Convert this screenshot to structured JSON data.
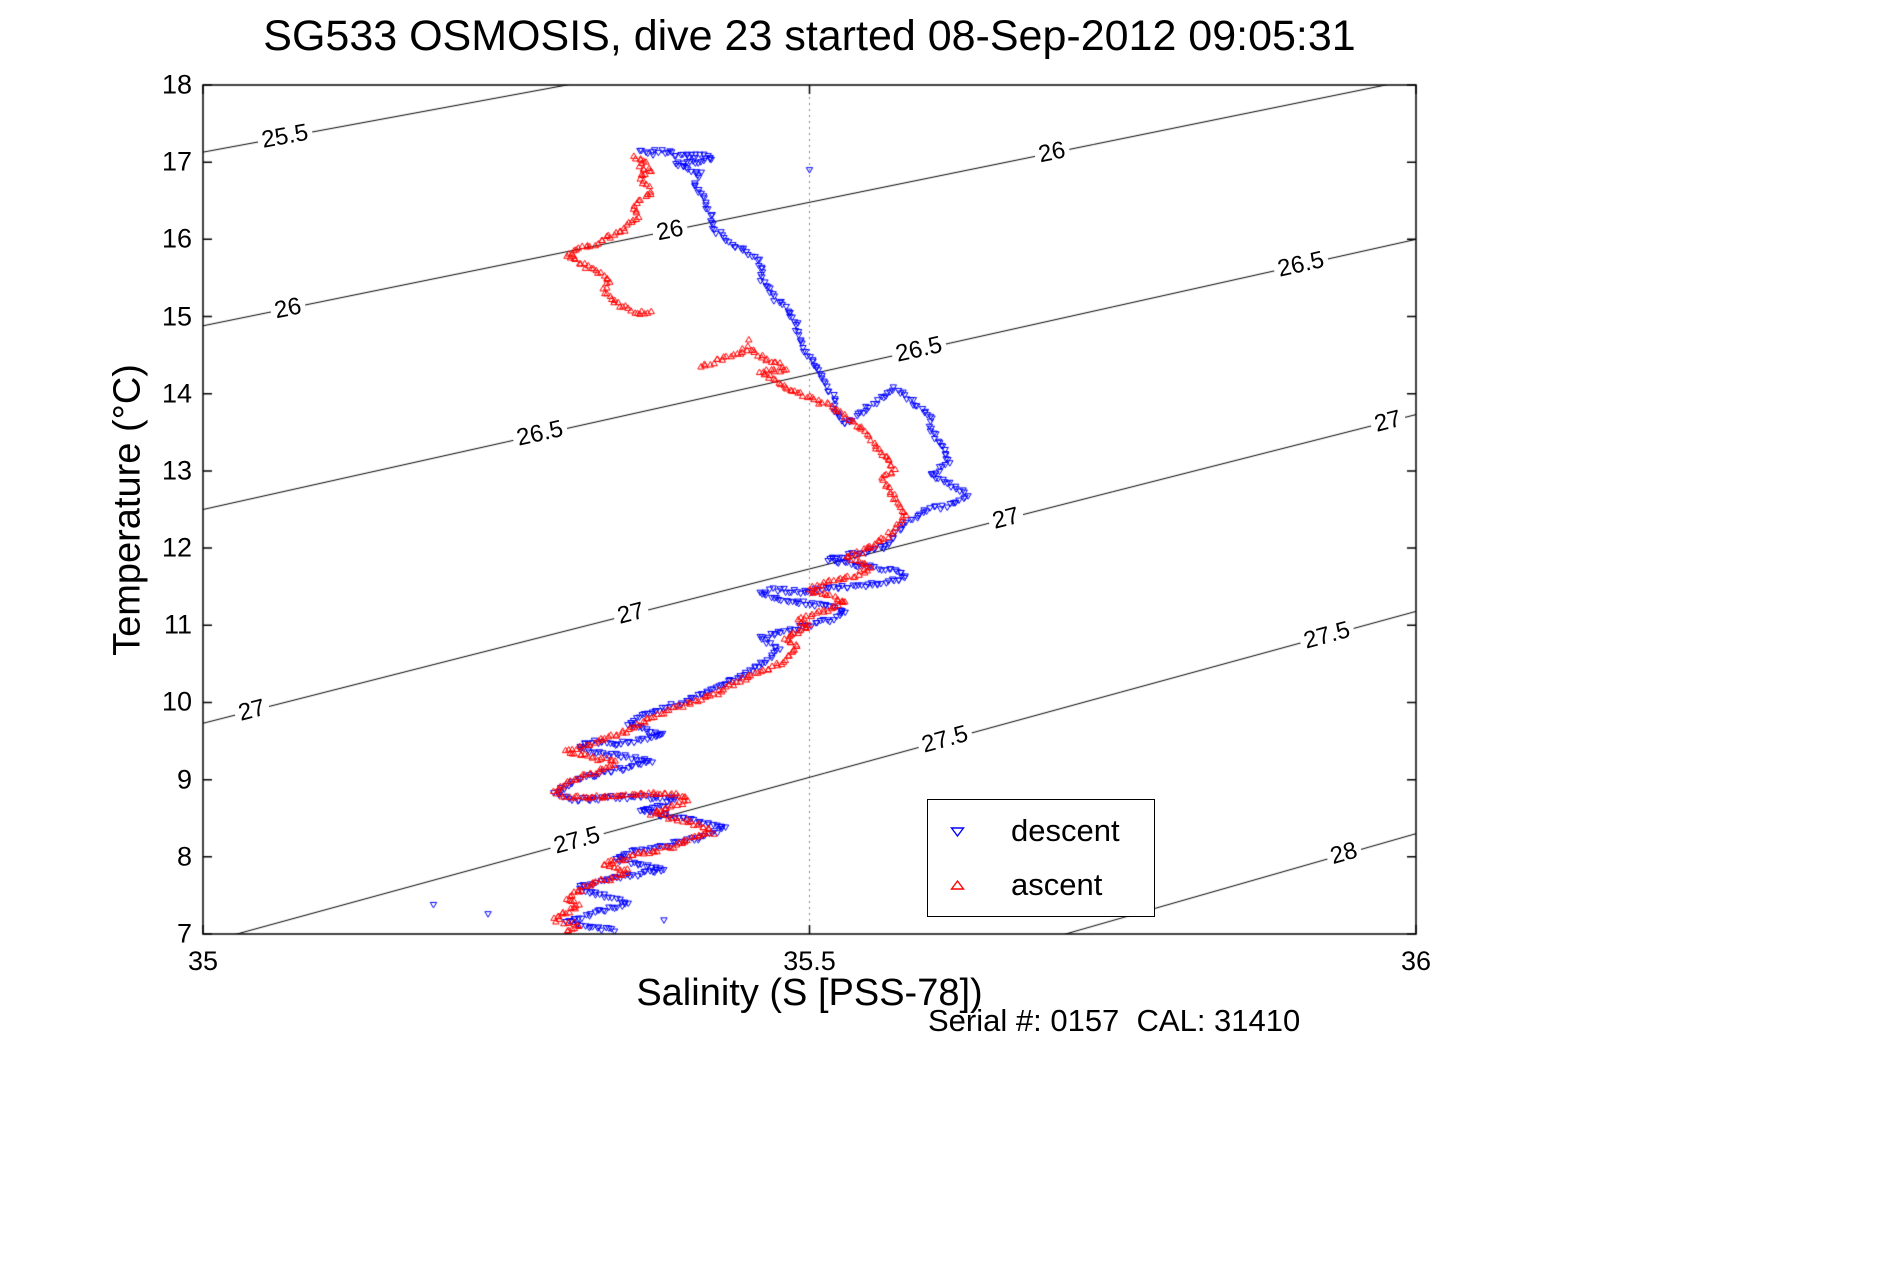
{
  "figure": {
    "background": "#ffffff"
  },
  "chart_data": {
    "type": "scatter",
    "title": "SG533 OSMOSIS, dive 23 started 08-Sep-2012 09:05:31",
    "xlabel": "Salinity (S [PSS-78])",
    "ylabel": "Temperature (°C)",
    "annotation": "Serial #: 0157  CAL: 31410",
    "xlim": [
      35,
      36
    ],
    "ylim": [
      7,
      18
    ],
    "x_ticks": [
      {
        "value": 35,
        "label": "35"
      },
      {
        "value": 35.5,
        "label": "35.5"
      },
      {
        "value": 36,
        "label": "36"
      }
    ],
    "y_ticks": [
      7,
      8,
      9,
      10,
      11,
      12,
      13,
      14,
      15,
      16,
      17,
      18
    ],
    "grid": {
      "vertical_dotted_at": [
        35.5
      ]
    },
    "axis_color": "#000000",
    "contour_color": "#000000",
    "contours": [
      {
        "value": 25.5,
        "label": "25.5",
        "t_at_35": 17.13,
        "slope": 2.9,
        "label_s": [
          35.068
        ]
      },
      {
        "value": 26,
        "label": "26",
        "t_at_35": 14.88,
        "slope": 3.2,
        "label_s": [
          35.07,
          35.385,
          35.7
        ]
      },
      {
        "value": 26.5,
        "label": "26.5",
        "t_at_35": 12.5,
        "slope": 3.5,
        "label_s": [
          35.278,
          35.59,
          35.905
        ]
      },
      {
        "value": 27,
        "label": "27",
        "t_at_35": 9.73,
        "slope": 4.0,
        "label_s": [
          35.04,
          35.353,
          35.662,
          35.977
        ]
      },
      {
        "value": 27.5,
        "label": "27.5",
        "t_at_35": 6.88,
        "slope": 4.3,
        "label_s": [
          35.308,
          35.612,
          35.927
        ]
      },
      {
        "value": 28,
        "label": "28",
        "t_at_35": 3.8,
        "slope": 4.5,
        "label_s": [
          35.941
        ]
      }
    ],
    "legend": {
      "position": "inside-lower-right",
      "entries": [
        {
          "label": "descent",
          "marker": "triangle-down",
          "color": "#0000ff"
        },
        {
          "label": "ascent",
          "marker": "triangle-up",
          "color": "#ff0000"
        }
      ]
    },
    "series": [
      {
        "name": "descent",
        "marker": "triangle-down",
        "color": "#0000ff",
        "points": [
          [
            35.36,
            17.15
          ],
          [
            35.37,
            17.1
          ],
          [
            35.37,
            17.14
          ],
          [
            35.385,
            17.13
          ],
          [
            35.39,
            17.07
          ],
          [
            35.4,
            17.12
          ],
          [
            35.4,
            17.07
          ],
          [
            35.41,
            17.09
          ],
          [
            35.42,
            17.05
          ],
          [
            35.405,
            17.0
          ],
          [
            35.39,
            16.97
          ],
          [
            35.41,
            16.85
          ],
          [
            35.405,
            16.72
          ],
          [
            35.41,
            16.58
          ],
          [
            35.415,
            16.45
          ],
          [
            35.42,
            16.3
          ],
          [
            35.42,
            16.15
          ],
          [
            35.43,
            16.02
          ],
          [
            35.44,
            15.9
          ],
          [
            35.455,
            15.78
          ],
          [
            35.46,
            15.65
          ],
          [
            35.46,
            15.5
          ],
          [
            35.465,
            15.38
          ],
          [
            35.47,
            15.25
          ],
          [
            35.48,
            15.12
          ],
          [
            35.485,
            15.0
          ],
          [
            35.49,
            14.88
          ],
          [
            35.49,
            14.75
          ],
          [
            35.495,
            14.6
          ],
          [
            35.5,
            14.48
          ],
          [
            35.505,
            14.35
          ],
          [
            35.51,
            14.22
          ],
          [
            35.515,
            14.08
          ],
          [
            35.52,
            13.95
          ],
          [
            35.52,
            13.82
          ],
          [
            35.525,
            13.7
          ],
          [
            35.53,
            13.6
          ],
          [
            35.57,
            14.08
          ],
          [
            35.58,
            13.95
          ],
          [
            35.6,
            13.7
          ],
          [
            35.6,
            13.52
          ],
          [
            35.61,
            13.3
          ],
          [
            35.615,
            13.1
          ],
          [
            35.6,
            12.95
          ],
          [
            35.62,
            12.8
          ],
          [
            35.63,
            12.68
          ],
          [
            35.62,
            12.58
          ],
          [
            35.6,
            12.5
          ],
          [
            35.59,
            12.42
          ],
          [
            35.58,
            12.35
          ],
          [
            35.575,
            12.25
          ],
          [
            35.57,
            12.15
          ],
          [
            35.565,
            12.05
          ],
          [
            35.555,
            11.98
          ],
          [
            35.54,
            11.93
          ],
          [
            35.525,
            11.89
          ],
          [
            35.515,
            11.85
          ],
          [
            35.53,
            11.8
          ],
          [
            35.55,
            11.76
          ],
          [
            35.565,
            11.72
          ],
          [
            35.575,
            11.68
          ],
          [
            35.58,
            11.62
          ],
          [
            35.565,
            11.57
          ],
          [
            35.55,
            11.53
          ],
          [
            35.53,
            11.5
          ],
          [
            35.51,
            11.46
          ],
          [
            35.49,
            11.43
          ],
          [
            35.47,
            11.47
          ],
          [
            35.46,
            11.41
          ],
          [
            35.475,
            11.35
          ],
          [
            35.49,
            11.3
          ],
          [
            35.51,
            11.26
          ],
          [
            35.525,
            11.21
          ],
          [
            35.53,
            11.15
          ],
          [
            35.52,
            11.08
          ],
          [
            35.505,
            11.02
          ],
          [
            35.49,
            10.96
          ],
          [
            35.475,
            10.9
          ],
          [
            35.46,
            10.84
          ],
          [
            35.468,
            10.76
          ],
          [
            35.475,
            10.68
          ],
          [
            35.47,
            10.6
          ],
          [
            35.46,
            10.5
          ],
          [
            35.45,
            10.4
          ],
          [
            35.44,
            10.3
          ],
          [
            35.425,
            10.2
          ],
          [
            35.41,
            10.1
          ],
          [
            35.4,
            10.02
          ],
          [
            35.385,
            9.95
          ],
          [
            35.37,
            9.88
          ],
          [
            35.36,
            9.8
          ],
          [
            35.35,
            9.72
          ],
          [
            35.365,
            9.65
          ],
          [
            35.38,
            9.58
          ],
          [
            35.36,
            9.51
          ],
          [
            35.34,
            9.46
          ],
          [
            35.32,
            9.49
          ],
          [
            35.31,
            9.41
          ],
          [
            35.33,
            9.34
          ],
          [
            35.35,
            9.29
          ],
          [
            35.37,
            9.23
          ],
          [
            35.35,
            9.16
          ],
          [
            35.33,
            9.09
          ],
          [
            35.31,
            9.01
          ],
          [
            35.3,
            8.91
          ],
          [
            35.29,
            8.81
          ],
          [
            35.305,
            8.74
          ],
          [
            35.33,
            8.76
          ],
          [
            35.36,
            8.78
          ],
          [
            35.39,
            8.75
          ],
          [
            35.38,
            8.66
          ],
          [
            35.36,
            8.59
          ],
          [
            35.385,
            8.52
          ],
          [
            35.41,
            8.46
          ],
          [
            35.43,
            8.39
          ],
          [
            35.42,
            8.29
          ],
          [
            35.4,
            8.21
          ],
          [
            35.375,
            8.13
          ],
          [
            35.35,
            8.05
          ],
          [
            35.34,
            7.97
          ],
          [
            35.36,
            7.9
          ],
          [
            35.38,
            7.84
          ],
          [
            35.355,
            7.77
          ],
          [
            35.33,
            7.69
          ],
          [
            35.31,
            7.61
          ],
          [
            35.32,
            7.53
          ],
          [
            35.34,
            7.46
          ],
          [
            35.35,
            7.39
          ],
          [
            35.33,
            7.31
          ],
          [
            35.315,
            7.23
          ],
          [
            35.3,
            7.16
          ],
          [
            35.32,
            7.09
          ],
          [
            35.34,
            7.04
          ]
        ],
        "extra_points": [
          [
            35.19,
            7.38
          ],
          [
            35.235,
            7.26
          ],
          [
            35.5,
            16.9
          ],
          [
            35.38,
            7.18
          ]
        ]
      },
      {
        "name": "ascent",
        "marker": "triangle-up",
        "color": "#ff0000",
        "points": [
          [
            35.355,
            17.06
          ],
          [
            35.365,
            17.02
          ],
          [
            35.36,
            16.95
          ],
          [
            35.37,
            16.88
          ],
          [
            35.36,
            16.8
          ],
          [
            35.365,
            16.7
          ],
          [
            35.37,
            16.6
          ],
          [
            35.36,
            16.5
          ],
          [
            35.355,
            16.4
          ],
          [
            35.36,
            16.3
          ],
          [
            35.35,
            16.2
          ],
          [
            35.345,
            16.1
          ],
          [
            35.33,
            16.0
          ],
          [
            35.325,
            15.95
          ],
          [
            35.31,
            15.88
          ],
          [
            35.3,
            15.8
          ],
          [
            35.31,
            15.7
          ],
          [
            35.32,
            15.62
          ],
          [
            35.33,
            15.53
          ],
          [
            35.335,
            15.44
          ],
          [
            35.33,
            15.35
          ],
          [
            35.335,
            15.26
          ],
          [
            35.34,
            15.18
          ],
          [
            35.35,
            15.1
          ],
          [
            35.36,
            15.04
          ],
          [
            35.37,
            15.08
          ],
          null,
          [
            35.41,
            14.36
          ],
          [
            35.425,
            14.44
          ],
          [
            35.44,
            14.52
          ],
          [
            35.45,
            14.6
          ],
          [
            35.455,
            14.52
          ],
          [
            35.465,
            14.44
          ],
          [
            35.475,
            14.38
          ],
          [
            35.48,
            14.3
          ],
          [
            35.46,
            14.28
          ],
          [
            35.48,
            14.08
          ],
          [
            35.52,
            13.82
          ],
          [
            35.55,
            13.45
          ],
          [
            35.555,
            13.3
          ],
          [
            35.565,
            13.15
          ],
          [
            35.57,
            13.02
          ],
          [
            35.56,
            12.9
          ],
          [
            35.565,
            12.78
          ],
          [
            35.57,
            12.65
          ],
          [
            35.575,
            12.52
          ],
          [
            35.58,
            12.42
          ],
          [
            35.575,
            12.32
          ],
          [
            35.57,
            12.22
          ],
          [
            35.56,
            12.12
          ],
          [
            35.55,
            12.02
          ],
          [
            35.54,
            11.94
          ],
          [
            35.53,
            11.88
          ],
          [
            35.545,
            11.81
          ],
          [
            35.55,
            11.74
          ],
          [
            35.54,
            11.66
          ],
          [
            35.525,
            11.6
          ],
          [
            35.51,
            11.53
          ],
          [
            35.5,
            11.45
          ],
          [
            35.515,
            11.38
          ],
          [
            35.53,
            11.31
          ],
          [
            35.52,
            11.23
          ],
          [
            35.505,
            11.15
          ],
          [
            35.49,
            11.07
          ],
          [
            35.5,
            10.99
          ],
          [
            35.49,
            10.9
          ],
          [
            35.48,
            10.82
          ],
          [
            35.49,
            10.73
          ],
          [
            35.485,
            10.64
          ],
          [
            35.48,
            10.55
          ],
          [
            35.47,
            10.46
          ],
          [
            35.455,
            10.37
          ],
          [
            35.44,
            10.27
          ],
          [
            35.43,
            10.17
          ],
          [
            35.415,
            10.07
          ],
          [
            35.4,
            9.99
          ],
          [
            35.385,
            9.91
          ],
          [
            35.37,
            9.82
          ],
          [
            35.36,
            9.72
          ],
          [
            35.35,
            9.62
          ],
          [
            35.33,
            9.53
          ],
          [
            35.315,
            9.45
          ],
          [
            35.3,
            9.37
          ],
          [
            35.32,
            9.29
          ],
          [
            35.34,
            9.23
          ],
          [
            35.33,
            9.13
          ],
          [
            35.31,
            9.03
          ],
          [
            35.3,
            8.93
          ],
          [
            35.29,
            8.83
          ],
          [
            35.3,
            8.76
          ],
          [
            35.33,
            8.79
          ],
          [
            35.36,
            8.81
          ],
          [
            35.39,
            8.81
          ],
          [
            35.4,
            8.73
          ],
          [
            35.38,
            8.63
          ],
          [
            35.37,
            8.56
          ],
          [
            35.39,
            8.49
          ],
          [
            35.41,
            8.41
          ],
          [
            35.42,
            8.31
          ],
          [
            35.4,
            8.23
          ],
          [
            35.39,
            8.15
          ],
          [
            35.37,
            8.07
          ],
          [
            35.35,
            7.99
          ],
          [
            35.33,
            7.91
          ],
          [
            35.35,
            7.83
          ],
          [
            35.34,
            7.74
          ],
          [
            35.32,
            7.65
          ],
          [
            35.31,
            7.56
          ],
          [
            35.3,
            7.46
          ],
          [
            35.31,
            7.37
          ],
          [
            35.3,
            7.28
          ],
          [
            35.29,
            7.19
          ],
          [
            35.31,
            7.11
          ],
          [
            35.3,
            7.05
          ]
        ],
        "extra_points": [
          [
            35.45,
            14.7
          ]
        ]
      }
    ]
  }
}
